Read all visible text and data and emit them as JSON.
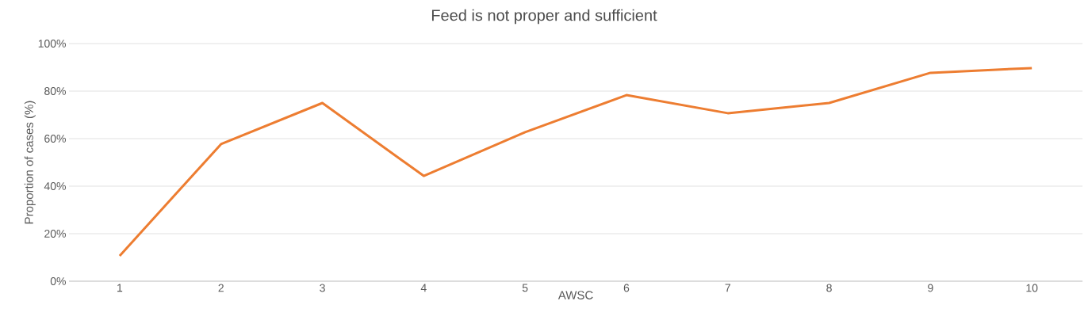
{
  "chart_data": {
    "type": "line",
    "title": "Feed is not proper and sufficient",
    "xlabel": "AWSC",
    "ylabel": "Proportion of cases (%)",
    "categories": [
      "1",
      "2",
      "3",
      "4",
      "5",
      "6",
      "7",
      "8",
      "9",
      "10"
    ],
    "series": [
      {
        "color": "#ed7d31",
        "values": [
          10.7,
          57.7,
          75,
          44.3,
          62.7,
          78.3,
          70.7,
          75,
          87.7,
          89.7
        ]
      }
    ],
    "ylim": [
      0,
      100
    ],
    "yticks": [
      {
        "value": 0,
        "label": "0%"
      },
      {
        "value": 20,
        "label": "20%"
      },
      {
        "value": 40,
        "label": "40%"
      },
      {
        "value": 60,
        "label": "60%"
      },
      {
        "value": 80,
        "label": "80%"
      },
      {
        "value": 100,
        "label": "100%"
      }
    ],
    "grid": "y",
    "legend": false,
    "marker": "none",
    "line_style": "solid"
  }
}
